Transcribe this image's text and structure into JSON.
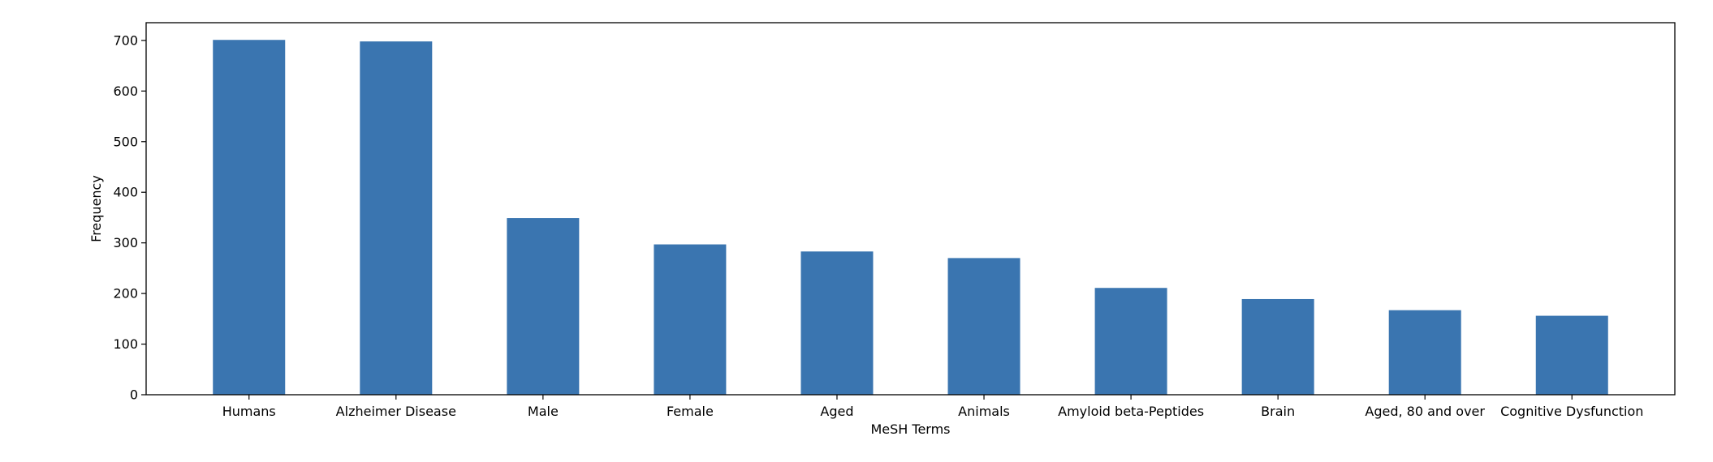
{
  "chart_data": {
    "type": "bar",
    "title": "",
    "xlabel": "MeSH Terms",
    "ylabel": "Frequency",
    "categories": [
      "Humans",
      "Alzheimer Disease",
      "Male",
      "Female",
      "Aged",
      "Animals",
      "Amyloid beta-Peptides",
      "Brain",
      "Aged, 80 and over",
      "Cognitive Dysfunction"
    ],
    "values": [
      701,
      698,
      349,
      297,
      283,
      270,
      211,
      189,
      167,
      156
    ],
    "ylim": [
      0,
      735
    ],
    "yticks": [
      0,
      100,
      200,
      300,
      400,
      500,
      600,
      700
    ],
    "grid": false,
    "legend": "none",
    "colors": {
      "bar": "#3a75b0",
      "axis": "#000000",
      "background": "#ffffff"
    }
  }
}
